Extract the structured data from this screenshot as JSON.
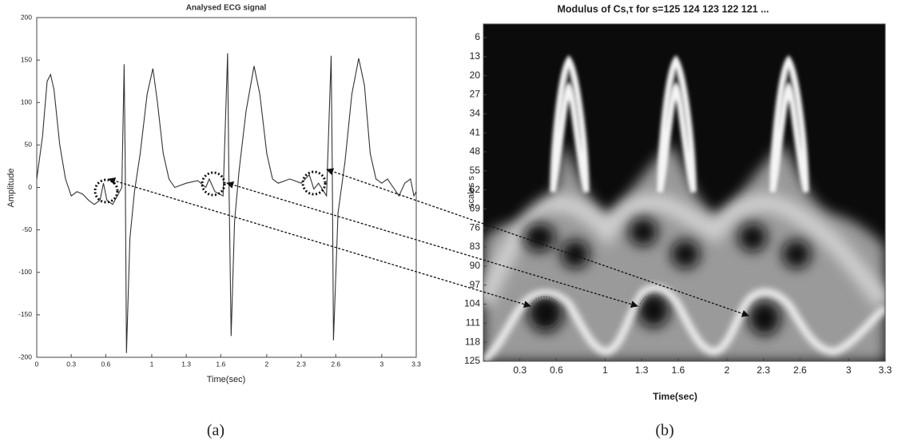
{
  "chart_data": [
    {
      "type": "line",
      "title": "Analysed ECG signal",
      "xlabel": "Time(sec)",
      "ylabel": "Amplitude",
      "caption": "(a)",
      "color": "#333333",
      "x": [
        0,
        0.05,
        0.09,
        0.12,
        0.15,
        0.2,
        0.25,
        0.3,
        0.35,
        0.4,
        0.45,
        0.5,
        0.55,
        0.58,
        0.61,
        0.66,
        0.7,
        0.74,
        0.76,
        0.77,
        0.78,
        0.81,
        0.85,
        0.9,
        0.96,
        1.01,
        1.05,
        1.1,
        1.15,
        1.2,
        1.3,
        1.4,
        1.47,
        1.5,
        1.55,
        1.62,
        1.66,
        1.67,
        1.69,
        1.72,
        1.76,
        1.82,
        1.89,
        1.94,
        2.0,
        2.05,
        2.1,
        2.2,
        2.3,
        2.37,
        2.41,
        2.45,
        2.52,
        2.56,
        2.57,
        2.58,
        2.62,
        2.68,
        2.74,
        2.8,
        2.85,
        2.9,
        2.95,
        3.0,
        3.05,
        3.1,
        3.15,
        3.2,
        3.25,
        3.28,
        3.3
      ],
      "values": [
        10,
        60,
        125,
        133,
        115,
        50,
        10,
        -10,
        -5,
        -8,
        -15,
        -20,
        -15,
        5,
        -15,
        -20,
        -10,
        0,
        145,
        20,
        -195,
        -60,
        -5,
        40,
        110,
        140,
        100,
        40,
        10,
        0,
        5,
        8,
        0,
        10,
        -5,
        -10,
        158,
        20,
        -175,
        -40,
        20,
        90,
        143,
        110,
        40,
        10,
        5,
        10,
        5,
        15,
        -2,
        5,
        -10,
        155,
        20,
        -180,
        -30,
        30,
        110,
        152,
        120,
        40,
        10,
        5,
        10,
        0,
        -10,
        5,
        10,
        -10,
        -5
      ],
      "xlim": [
        0,
        3.3
      ],
      "xticks": [
        0,
        0.3,
        0.6,
        1,
        1.3,
        1.6,
        2,
        2.3,
        2.6,
        3,
        3.3
      ],
      "ylim": [
        -200,
        200
      ],
      "yticks": [
        -200,
        -150,
        -100,
        -50,
        0,
        50,
        100,
        150,
        200
      ]
    },
    {
      "type": "heatmap",
      "title": "Modulus of Cs,τ for s=125 124 123 122 121 ...",
      "xlabel": "Time(sec)",
      "ylabel": "scales s",
      "caption": "(b)",
      "xlim": [
        0,
        3.3
      ],
      "xticks": [
        0.3,
        0.6,
        1,
        1.3,
        1.6,
        2,
        2.3,
        2.6,
        3,
        3.3
      ],
      "ylim": [
        125,
        1
      ],
      "yticks": [
        6,
        13,
        20,
        27,
        34,
        41,
        48,
        55,
        62,
        69,
        76,
        83,
        90,
        97,
        104,
        111,
        118,
        125
      ]
    }
  ]
}
